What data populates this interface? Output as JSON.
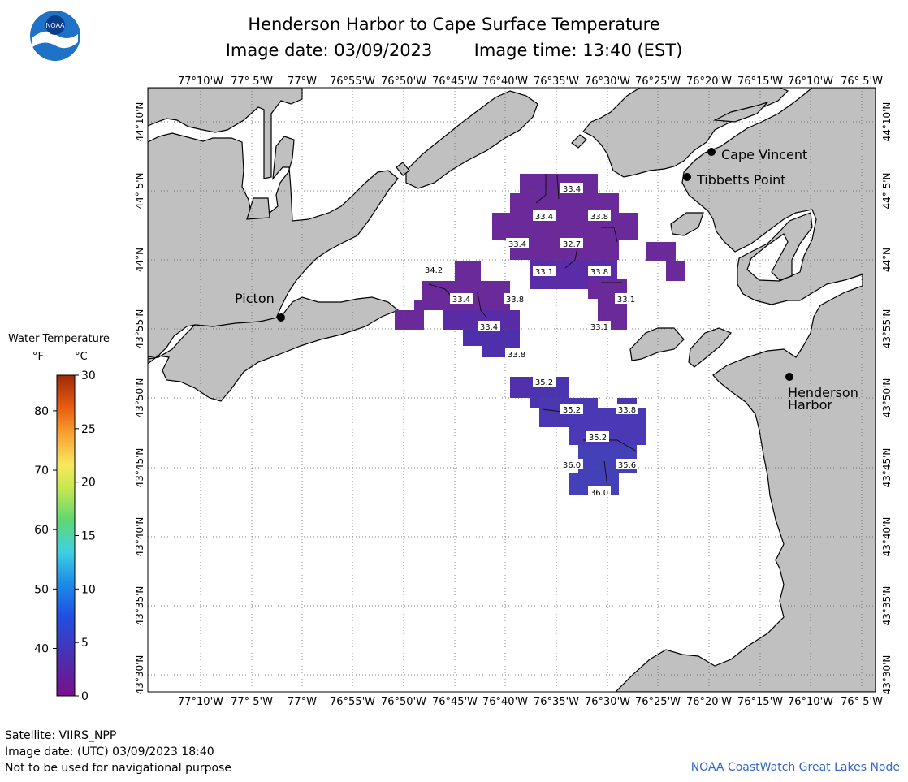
{
  "header": {
    "title": "Henderson Harbor to Cape Surface Temperature",
    "image_date": "Image date: 03/09/2023",
    "image_time": "Image time: 13:40 (EST)",
    "logo_text": "NOAA"
  },
  "map": {
    "lon_labels": [
      "77°10'W",
      "77° 5'W",
      "77°W",
      "76°55'W",
      "76°50'W",
      "76°45'W",
      "76°40'W",
      "76°35'W",
      "76°30'W",
      "76°25'W",
      "76°20'W",
      "76°15'W",
      "76°10'W",
      "76° 5'W"
    ],
    "lat_labels": [
      "44°10'N",
      "44° 5'N",
      "44°N",
      "43°55'N",
      "43°50'N",
      "43°45'N",
      "43°40'N",
      "43°35'N",
      "43°30'N"
    ],
    "places": [
      {
        "name": "Cape Vincent"
      },
      {
        "name": "Tibbetts Point"
      },
      {
        "name": "Picton"
      },
      {
        "name": "Henderson Harbor"
      }
    ],
    "temperature_labels": [
      "33.4",
      "33.4",
      "33.8",
      "33.4",
      "32.7",
      "33.1",
      "33.8",
      "34.2",
      "33.4",
      "33.8",
      "33.1",
      "33.4",
      "33.1",
      "33.8",
      "35.2",
      "35.2",
      "33.8",
      "35.2",
      "36.0",
      "35.6",
      "36.0"
    ],
    "colors": {
      "land": "#c0c0c0",
      "water": "#ffffff",
      "sst_cold": "#6a2a9a",
      "sst_mid": "#4b3bb0"
    }
  },
  "legend": {
    "title": "Water Temperature",
    "unit_f": "°F",
    "unit_c": "°C",
    "f_ticks": [
      "80",
      "70",
      "60",
      "50",
      "40"
    ],
    "c_ticks": [
      "30",
      "25",
      "20",
      "15",
      "10",
      "5",
      "0"
    ]
  },
  "footer": {
    "satellite": "Satellite: VIIRS_NPP",
    "utc_date": "Image date: (UTC) 03/09/2023  18:40",
    "disclaimer": "Not to be used for navigational purpose",
    "credit": "NOAA CoastWatch Great Lakes Node"
  }
}
